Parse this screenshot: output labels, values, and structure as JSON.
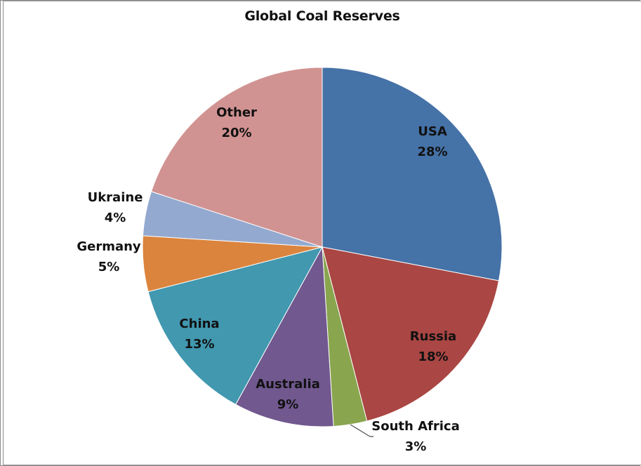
{
  "chart_data": {
    "type": "pie",
    "title": "Global Coal Reserves",
    "categories": [
      "USA",
      "Russia",
      "South Africa",
      "Australia",
      "China",
      "Germany",
      "Ukraine",
      "Other"
    ],
    "values": [
      28,
      18,
      3,
      9,
      13,
      5,
      4,
      20
    ],
    "value_labels": [
      "28%",
      "18%",
      "3%",
      "9%",
      "13%",
      "5%",
      "4%",
      "20%"
    ],
    "colors": [
      "#4572A7",
      "#AA4643",
      "#89A54E",
      "#71588F",
      "#4198AF",
      "#DB843D",
      "#93A9CF",
      "#D19392"
    ],
    "start_angle": "12 o'clock",
    "direction": "clockwise",
    "legend": "none",
    "data_labels": "category name and percentage"
  },
  "ui": {
    "title": "Global Coal Reserves"
  }
}
